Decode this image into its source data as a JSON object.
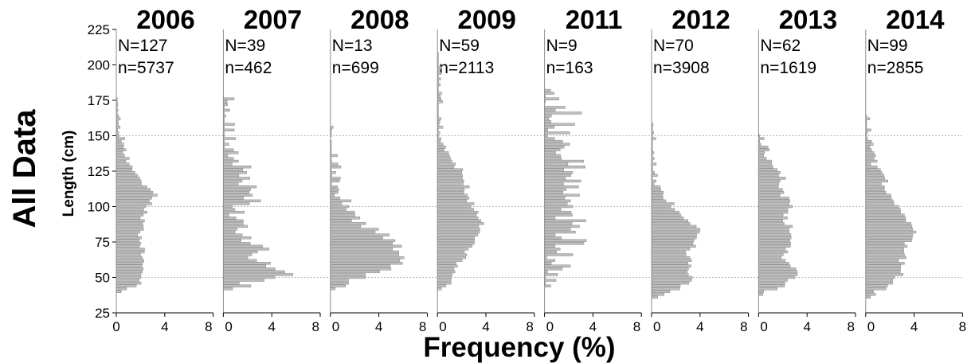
{
  "chart_data": {
    "type": "bar",
    "orientation": "horizontal",
    "row_label": "All Data",
    "xlabel": "Frequency (%)",
    "ylabel": "Length (cm)",
    "ylim": [
      25,
      225
    ],
    "yticks": [
      25,
      50,
      75,
      100,
      125,
      150,
      175,
      200,
      225
    ],
    "xlim": [
      0,
      8
    ],
    "xticks": [
      0,
      4,
      8
    ],
    "xtick_labels": [
      "0",
      "4",
      "8"
    ],
    "bin_width_cm": 2,
    "gridlines_y": [
      50,
      100,
      150
    ],
    "bar_color": "#bdbdbd",
    "panels": [
      {
        "year": "2006",
        "N_label": "N=127",
        "n_label": "n=5737",
        "profile": [
          [
            40,
            0.3
          ],
          [
            44,
            1.8
          ],
          [
            50,
            2.1
          ],
          [
            60,
            2.2
          ],
          [
            70,
            2.2
          ],
          [
            80,
            2.0
          ],
          [
            90,
            2.1
          ],
          [
            100,
            2.6
          ],
          [
            108,
            3.2
          ],
          [
            112,
            2.6
          ],
          [
            120,
            1.9
          ],
          [
            130,
            1.1
          ],
          [
            140,
            0.7
          ],
          [
            150,
            0.4
          ],
          [
            160,
            0.25
          ],
          [
            170,
            0.1
          ],
          [
            178,
            0
          ]
        ],
        "noise_seed": 11,
        "noise_amp": 0.25
      },
      {
        "year": "2007",
        "N_label": "N=39",
        "n_label": "n=462",
        "profile": [
          [
            42,
            1.3
          ],
          [
            46,
            1.8
          ],
          [
            50,
            5.0
          ],
          [
            54,
            5.5
          ],
          [
            58,
            4.0
          ],
          [
            62,
            3.2
          ],
          [
            66,
            2.5
          ],
          [
            70,
            3.2
          ],
          [
            75,
            1.5
          ],
          [
            80,
            2.0
          ],
          [
            85,
            1.3
          ],
          [
            90,
            1.6
          ],
          [
            95,
            1.0
          ],
          [
            100,
            1.5
          ],
          [
            105,
            2.5
          ],
          [
            110,
            2.2
          ],
          [
            115,
            1.8
          ],
          [
            120,
            2.2
          ],
          [
            125,
            1.5
          ],
          [
            130,
            1.5
          ],
          [
            140,
            0.9
          ],
          [
            150,
            0.6
          ],
          [
            155,
            0
          ],
          [
            175,
            0.2
          ],
          [
            177,
            0
          ]
        ],
        "noise_seed": 23,
        "noise_amp": 0.9
      },
      {
        "year": "2008",
        "N_label": "N=13",
        "n_label": "n=699",
        "profile": [
          [
            42,
            0.6
          ],
          [
            46,
            1.4
          ],
          [
            50,
            2.6
          ],
          [
            55,
            4.5
          ],
          [
            60,
            5.5
          ],
          [
            65,
            6.3
          ],
          [
            70,
            5.5
          ],
          [
            76,
            5.2
          ],
          [
            82,
            3.8
          ],
          [
            88,
            2.6
          ],
          [
            94,
            1.8
          ],
          [
            100,
            1.4
          ],
          [
            106,
            1.0
          ],
          [
            112,
            0.8
          ],
          [
            118,
            0.4
          ],
          [
            124,
            0.3
          ],
          [
            130,
            0.3
          ],
          [
            136,
            0.2
          ],
          [
            142,
            0.2
          ],
          [
            148,
            0
          ],
          [
            155,
            0.15
          ],
          [
            157,
            0
          ]
        ],
        "noise_seed": 37,
        "noise_amp": 0.6
      },
      {
        "year": "2009",
        "N_label": "N=59",
        "n_label": "n=2113",
        "profile": [
          [
            41,
            0.2
          ],
          [
            44,
            0.7
          ],
          [
            50,
            1.2
          ],
          [
            55,
            1.4
          ],
          [
            60,
            1.8
          ],
          [
            65,
            2.2
          ],
          [
            70,
            2.5
          ],
          [
            75,
            2.8
          ],
          [
            80,
            3.2
          ],
          [
            85,
            3.5
          ],
          [
            90,
            3.6
          ],
          [
            95,
            3.3
          ],
          [
            100,
            3.0
          ],
          [
            105,
            2.6
          ],
          [
            110,
            2.4
          ],
          [
            115,
            2.4
          ],
          [
            120,
            2.2
          ],
          [
            125,
            1.9
          ],
          [
            130,
            1.5
          ],
          [
            135,
            1.0
          ],
          [
            140,
            0.7
          ],
          [
            150,
            0.3
          ],
          [
            160,
            0.2
          ],
          [
            170,
            0.15
          ],
          [
            180,
            0.1
          ],
          [
            200,
            0.05
          ],
          [
            210,
            0
          ]
        ],
        "noise_seed": 51,
        "noise_amp": 0.3
      },
      {
        "year": "2011",
        "N_label": "N=9",
        "n_label": "n=163",
        "profile": [
          [
            44,
            0.7
          ],
          [
            50,
            0.6
          ],
          [
            60,
            1.0
          ],
          [
            70,
            1.8
          ],
          [
            76,
            2.5
          ],
          [
            82,
            2.0
          ],
          [
            88,
            2.5
          ],
          [
            94,
            2.0
          ],
          [
            100,
            3.0
          ],
          [
            106,
            2.2
          ],
          [
            112,
            2.8
          ],
          [
            118,
            2.5
          ],
          [
            124,
            3.0
          ],
          [
            130,
            2.5
          ],
          [
            136,
            2.2
          ],
          [
            142,
            1.6
          ],
          [
            148,
            1.4
          ],
          [
            154,
            1.0
          ],
          [
            160,
            1.4
          ],
          [
            166,
            1.8
          ],
          [
            172,
            0
          ],
          [
            182,
            0.7
          ],
          [
            184,
            0
          ]
        ],
        "noise_seed": 67,
        "noise_amp": 1.3
      },
      {
        "year": "2012",
        "N_label": "N=70",
        "n_label": "n=3908",
        "profile": [
          [
            36,
            0.4
          ],
          [
            40,
            1.8
          ],
          [
            46,
            3.0
          ],
          [
            52,
            3.3
          ],
          [
            60,
            3.0
          ],
          [
            68,
            3.1
          ],
          [
            76,
            3.7
          ],
          [
            82,
            4.0
          ],
          [
            88,
            3.3
          ],
          [
            94,
            2.5
          ],
          [
            100,
            1.8
          ],
          [
            106,
            1.2
          ],
          [
            112,
            0.6
          ],
          [
            118,
            0.4
          ],
          [
            126,
            0.2
          ],
          [
            136,
            0.1
          ],
          [
            150,
            0.05
          ],
          [
            160,
            0
          ]
        ],
        "noise_seed": 79,
        "noise_amp": 0.3
      },
      {
        "year": "2013",
        "N_label": "N=62",
        "n_label": "n=1619",
        "profile": [
          [
            38,
            0.3
          ],
          [
            42,
            1.3
          ],
          [
            46,
            2.5
          ],
          [
            52,
            3.2
          ],
          [
            58,
            2.5
          ],
          [
            64,
            2.0
          ],
          [
            70,
            2.3
          ],
          [
            76,
            2.6
          ],
          [
            82,
            2.8
          ],
          [
            88,
            2.4
          ],
          [
            94,
            2.3
          ],
          [
            100,
            2.4
          ],
          [
            106,
            2.2
          ],
          [
            112,
            2.0
          ],
          [
            118,
            2.0
          ],
          [
            124,
            1.6
          ],
          [
            130,
            1.1
          ],
          [
            136,
            0.8
          ],
          [
            142,
            0.5
          ],
          [
            148,
            0.3
          ],
          [
            152,
            0
          ]
        ],
        "noise_seed": 91,
        "noise_amp": 0.4
      },
      {
        "year": "2014",
        "N_label": "N=99",
        "n_label": "n=2855",
        "profile": [
          [
            36,
            0.3
          ],
          [
            40,
            1.0
          ],
          [
            46,
            2.2
          ],
          [
            52,
            2.8
          ],
          [
            58,
            2.9
          ],
          [
            64,
            3.0
          ],
          [
            70,
            3.2
          ],
          [
            76,
            3.6
          ],
          [
            82,
            3.9
          ],
          [
            88,
            3.4
          ],
          [
            94,
            2.9
          ],
          [
            100,
            2.5
          ],
          [
            106,
            2.0
          ],
          [
            112,
            1.8
          ],
          [
            118,
            1.5
          ],
          [
            124,
            1.0
          ],
          [
            130,
            0.7
          ],
          [
            136,
            0.5
          ],
          [
            142,
            0.35
          ],
          [
            150,
            0.2
          ],
          [
            160,
            0.1
          ],
          [
            166,
            0
          ]
        ],
        "noise_seed": 103,
        "noise_amp": 0.35
      }
    ]
  }
}
